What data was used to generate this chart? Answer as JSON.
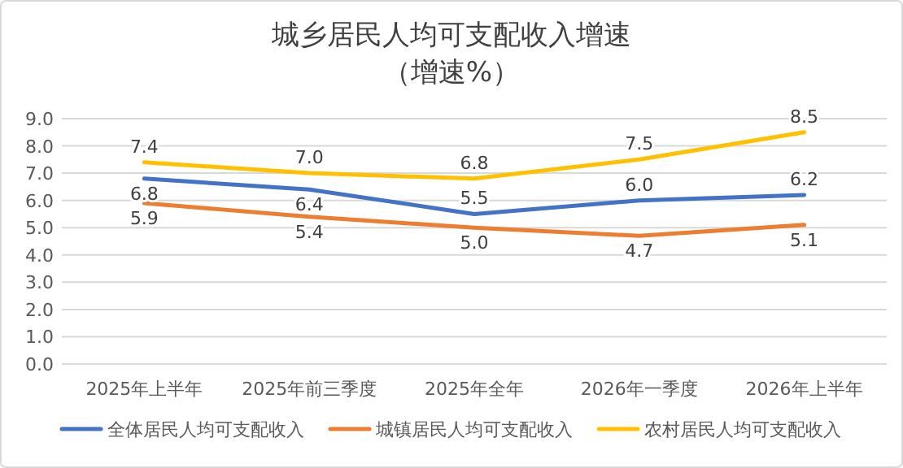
{
  "chart_data": {
    "type": "line",
    "title": "城乡居民人均可支配收入增速",
    "subtitle": "（增速%）",
    "categories": [
      "2025年上半年",
      "2025年前三季度",
      "2025年全年",
      "2026年一季度",
      "2026年上半年"
    ],
    "series": [
      {
        "name": "全体居民人均可支配收入",
        "color": "#4472c4",
        "values": [
          6.8,
          6.4,
          5.5,
          6.0,
          6.2
        ],
        "value_labels": [
          "6.8",
          "6.4",
          "5.5",
          "6.0",
          "6.2"
        ]
      },
      {
        "name": "城镇居民人均可支配收入",
        "color": "#ed7d31",
        "values": [
          5.9,
          5.4,
          5.0,
          4.7,
          5.1
        ],
        "value_labels": [
          "5.9",
          "5.4",
          "5.0",
          "4.7",
          "5.1"
        ]
      },
      {
        "name": "农村居民人均可支配收入",
        "color": "#ffc000",
        "values": [
          7.4,
          7.0,
          6.8,
          7.5,
          8.5
        ],
        "value_labels": [
          "7.4",
          "7.0",
          "6.8",
          "7.5",
          "8.5"
        ]
      }
    ],
    "ylim": [
      0,
      9
    ],
    "yticks": [
      {
        "value": 0,
        "label": "0.0"
      },
      {
        "value": 1,
        "label": "1.0"
      },
      {
        "value": 2,
        "label": "2.0"
      },
      {
        "value": 3,
        "label": "3.0"
      },
      {
        "value": 4,
        "label": "4.0"
      },
      {
        "value": 5,
        "label": "5.0"
      },
      {
        "value": 6,
        "label": "6.0"
      },
      {
        "value": 7,
        "label": "7.0"
      },
      {
        "value": 8,
        "label": "8.0"
      },
      {
        "value": 9,
        "label": "9.0"
      }
    ],
    "grid": "y",
    "legend": "bottom",
    "marker": "none",
    "line_style": "solid"
  }
}
